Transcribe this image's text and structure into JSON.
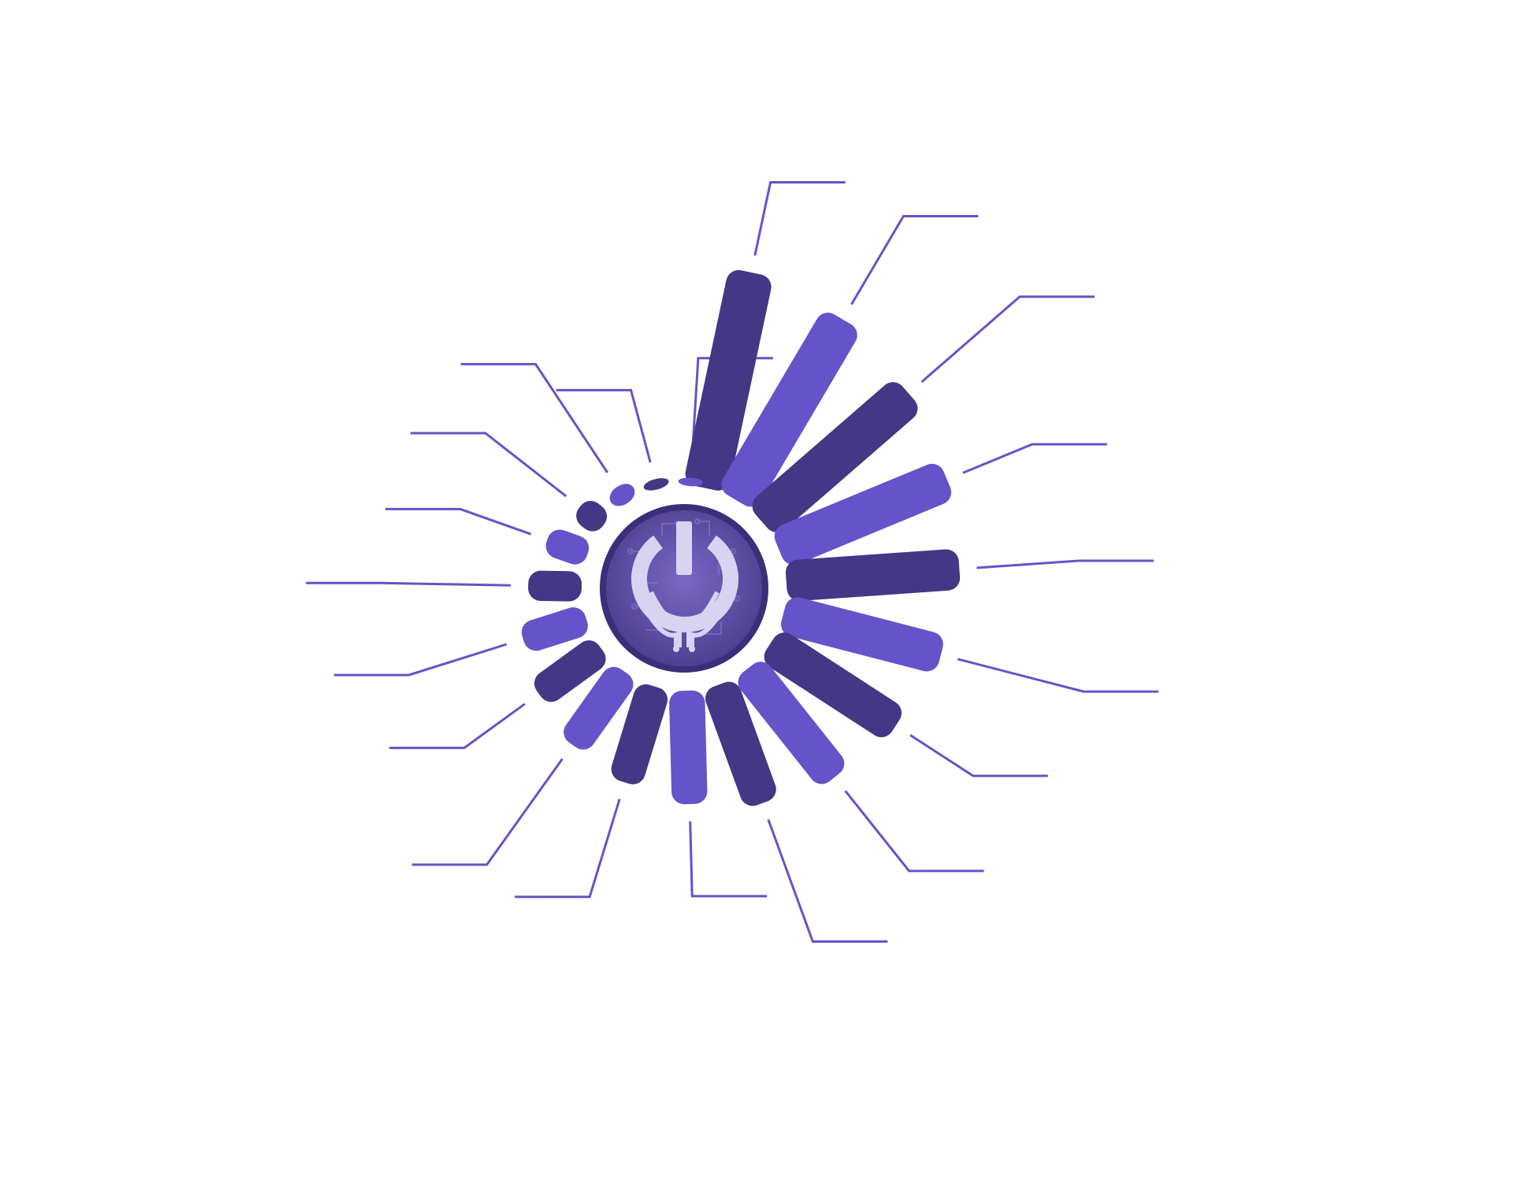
{
  "chart_data": {
    "type": "radial-bar",
    "title": "",
    "value_unit": "",
    "start_angle_deg": -78,
    "angle_step_deg": 18.5,
    "direction": "clockwise",
    "value_range": [
      0,
      100
    ],
    "labels_visible": false,
    "series": [
      {
        "category_index": 1,
        "value": 100,
        "label": ""
      },
      {
        "category_index": 2,
        "value": 95,
        "label": ""
      },
      {
        "category_index": 3,
        "value": 88,
        "label": ""
      },
      {
        "category_index": 4,
        "value": 82,
        "label": ""
      },
      {
        "category_index": 5,
        "value": 78,
        "label": ""
      },
      {
        "category_index": 6,
        "value": 73,
        "label": ""
      },
      {
        "category_index": 7,
        "value": 67,
        "label": ""
      },
      {
        "category_index": 8,
        "value": 62,
        "label": ""
      },
      {
        "category_index": 9,
        "value": 56,
        "label": ""
      },
      {
        "category_index": 10,
        "value": 50,
        "label": ""
      },
      {
        "category_index": 11,
        "value": 44,
        "label": ""
      },
      {
        "category_index": 12,
        "value": 39,
        "label": ""
      },
      {
        "category_index": 13,
        "value": 33,
        "label": ""
      },
      {
        "category_index": 14,
        "value": 28,
        "label": ""
      },
      {
        "category_index": 15,
        "value": 22,
        "label": ""
      },
      {
        "category_index": 16,
        "value": 17,
        "label": ""
      },
      {
        "category_index": 17,
        "value": 11,
        "label": ""
      },
      {
        "category_index": 18,
        "value": 6,
        "label": ""
      },
      {
        "category_index": 19,
        "value": 2,
        "label": ""
      },
      {
        "category_index": 20,
        "value": 1,
        "label": ""
      }
    ]
  },
  "colors": {
    "bar_dark": "#443785",
    "bar_light": "#6553c9",
    "leader_line": "#6553c9",
    "hub_fill": "#5b4aa6",
    "hub_ring": "#3a2f78",
    "icon_fill": "#d9d3f2"
  },
  "center_icon": "power-circuit-icon"
}
